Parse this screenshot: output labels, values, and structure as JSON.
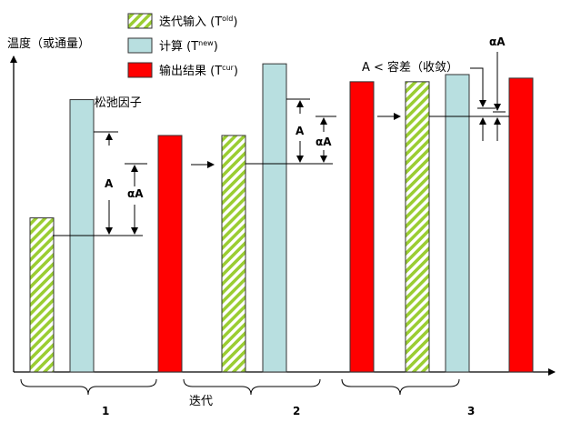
{
  "y_axis_label": "温度（或通量）",
  "x_axis_label": "迭代",
  "legend": [
    {
      "label": "迭代输入 (T",
      "sup": "old",
      "close": ")",
      "color": "#9acd32",
      "pattern": "hatched"
    },
    {
      "label": "计算 (T",
      "sup": "new",
      "close": ")",
      "color": "#b8dfe0"
    },
    {
      "label": "输出结果 (T",
      "sup": "cur",
      "close": ")",
      "color": "#ff0000"
    }
  ],
  "alpha_note": "α = 松弛因子",
  "convergence_note": "A < 容差（收敛）",
  "delta_label": "A",
  "alpha_delta_label": "αA",
  "iterations": [
    {
      "label": "1",
      "old": 0.43,
      "new": 0.76,
      "cur": 0.66
    },
    {
      "label": "2",
      "old": 0.66,
      "new": 0.86,
      "cur": 0.81
    },
    {
      "label": "3",
      "old": 0.81,
      "new": 0.83,
      "cur": 0.82
    }
  ]
}
